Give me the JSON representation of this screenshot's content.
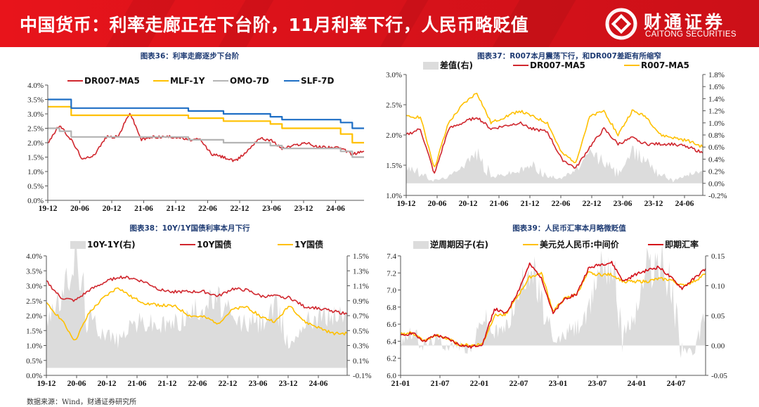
{
  "header": {
    "title": "中国货币：利率走廊正在下台阶，11月利率下行，人民币略贬值",
    "logo_cn": "财通证券",
    "logo_en": "CAITONG SECURITIES",
    "logo_icon": "caitong-logo-icon",
    "background_color": "#e0141b"
  },
  "source": "数据来源：Wind，财通证券研究所",
  "colors": {
    "red": "#d0272e",
    "yellow": "#ffc000",
    "gray": "#b4b4b4",
    "blue": "#1f6fc5",
    "area": "#dcdcdc",
    "title_blue": "#1f3c74"
  },
  "charts": {
    "c36": {
      "title": "图表36：利率走廊逐步下台阶",
      "legend": [
        "DR007-MA5",
        "MLF-1Y",
        "OMO-7D",
        "SLF-7D"
      ],
      "y_ticks": [
        "4.0%",
        "3.5%",
        "3.0%",
        "2.5%",
        "2.0%",
        "1.5%",
        "1.0%",
        "0.5%",
        "0.0%"
      ],
      "x_ticks": [
        "19-12",
        "20-06",
        "20-12",
        "21-06",
        "21-12",
        "22-06",
        "22-12",
        "23-06",
        "23-12",
        "24-06"
      ]
    },
    "c37": {
      "title": "图表37：R007本月震荡下行，和DR007差距有所缩窄",
      "legend": [
        "差值(右)",
        "DR007-MA5",
        "R007-MA5"
      ],
      "y_ticks": [
        "3.0%",
        "2.5%",
        "2.0%",
        "1.5%",
        "1.0%"
      ],
      "y2_ticks": [
        "1.8%",
        "1.6%",
        "1.4%",
        "1.2%",
        "1.0%",
        "0.8%",
        "0.6%",
        "0.4%",
        "0.2%",
        "0.0%",
        "-0.2%"
      ],
      "x_ticks": [
        "19-12",
        "20-06",
        "20-12",
        "21-06",
        "21-12",
        "22-06",
        "22-12",
        "23-06",
        "23-12",
        "24-06"
      ]
    },
    "c38": {
      "title": "图表38：10Y/1Y国债利率本月下行",
      "legend": [
        "10Y-1Y(右)",
        "10Y国债",
        "1Y国债"
      ],
      "y_ticks": [
        "4.0%",
        "3.5%",
        "3.0%",
        "2.5%",
        "2.0%",
        "1.5%",
        "1.0%",
        "0.5%",
        "0.0%"
      ],
      "y2_ticks": [
        "1.5%",
        "1.3%",
        "1.1%",
        "0.9%",
        "0.7%",
        "0.5%",
        "0.3%",
        "0.1%",
        "-0.1%"
      ],
      "x_ticks": [
        "19-12",
        "20-06",
        "20-12",
        "21-06",
        "21-12",
        "22-06",
        "22-12",
        "23-06",
        "23-12",
        "24-06"
      ]
    },
    "c39": {
      "title": "图表39：人民币汇率本月略微贬值",
      "legend": [
        "逆周期因子(右)",
        "美元兑人民币:中间价",
        "即期汇率"
      ],
      "y_ticks": [
        "7.4",
        "7.2",
        "7.0",
        "6.8",
        "6.6",
        "6.4",
        "6.2",
        "6.0"
      ],
      "y2_ticks": [
        "0.15",
        "0.10",
        "0.05",
        "0.00",
        "-0.05"
      ],
      "x_ticks": [
        "21-01",
        "21-07",
        "22-01",
        "22-07",
        "23-01",
        "23-07",
        "24-01",
        "24-07"
      ]
    }
  },
  "chart_data": [
    {
      "type": "line",
      "title": "图表36：利率走廊逐步下台阶",
      "xlabel": "",
      "ylabel": "",
      "ylim": [
        0,
        4.0
      ],
      "y_unit": "%",
      "legend_position": "top",
      "grid": false,
      "x": [
        "19-12",
        "20-02",
        "20-04",
        "20-06",
        "20-08",
        "20-10",
        "20-12",
        "21-01",
        "21-03",
        "21-06",
        "21-09",
        "21-12",
        "22-01",
        "22-03",
        "22-06",
        "22-08",
        "22-10",
        "22-12",
        "23-03",
        "23-06",
        "23-08",
        "23-10",
        "23-12",
        "24-03",
        "24-06",
        "24-08",
        "24-10",
        "24-11"
      ],
      "series": [
        {
          "name": "DR007-MA5",
          "values": [
            2.0,
            2.6,
            2.1,
            1.4,
            1.6,
            2.2,
            2.2,
            3.05,
            2.1,
            2.2,
            2.2,
            2.2,
            2.1,
            2.1,
            1.6,
            1.5,
            1.35,
            1.7,
            2.15,
            2.1,
            1.8,
            1.9,
            2.0,
            1.85,
            1.85,
            1.8,
            1.6,
            1.7
          ]
        },
        {
          "name": "MLF-1Y",
          "values": [
            3.25,
            3.25,
            2.95,
            2.95,
            2.95,
            2.95,
            2.95,
            2.95,
            2.95,
            2.95,
            2.95,
            2.95,
            2.85,
            2.85,
            2.85,
            2.75,
            2.75,
            2.75,
            2.75,
            2.65,
            2.5,
            2.5,
            2.5,
            2.5,
            2.5,
            2.3,
            2.0,
            2.0
          ]
        },
        {
          "name": "OMO-7D",
          "values": [
            2.5,
            2.4,
            2.2,
            2.2,
            2.2,
            2.2,
            2.2,
            2.2,
            2.2,
            2.2,
            2.2,
            2.2,
            2.1,
            2.1,
            2.1,
            2.0,
            2.0,
            2.0,
            2.0,
            1.9,
            1.8,
            1.8,
            1.8,
            1.8,
            1.8,
            1.7,
            1.5,
            1.5
          ]
        },
        {
          "name": "SLF-7D",
          "values": [
            3.5,
            3.5,
            3.2,
            3.2,
            3.2,
            3.2,
            3.2,
            3.2,
            3.2,
            3.2,
            3.2,
            3.2,
            3.1,
            3.1,
            3.1,
            3.0,
            3.0,
            3.0,
            3.0,
            2.9,
            2.8,
            2.8,
            2.8,
            2.8,
            2.8,
            2.7,
            2.5,
            2.5
          ]
        }
      ]
    },
    {
      "type": "line",
      "title": "图表37：R007本月震荡下行，和DR007差距有所缩窄",
      "xlabel": "",
      "ylabel": "",
      "ylim": [
        1.0,
        3.0
      ],
      "y2lim": [
        -0.2,
        1.8
      ],
      "y_unit": "%",
      "legend_position": "top",
      "grid": false,
      "x": [
        "19-12",
        "20-02",
        "20-04",
        "20-06",
        "20-09",
        "20-12",
        "21-03",
        "21-06",
        "21-09",
        "21-12",
        "22-03",
        "22-06",
        "22-09",
        "22-12",
        "23-03",
        "23-06",
        "23-09",
        "23-12",
        "24-03",
        "24-06",
        "24-09",
        "24-11"
      ],
      "series": [
        {
          "name": "差值(右)",
          "axis": "right",
          "type": "area",
          "values": [
            0.3,
            0.15,
            0.05,
            0.1,
            0.3,
            0.5,
            0.1,
            0.15,
            0.2,
            0.3,
            0.1,
            0.1,
            0.2,
            0.5,
            0.35,
            0.15,
            0.5,
            0.4,
            0.15,
            0.05,
            0.15,
            0.2
          ]
        },
        {
          "name": "DR007-MA5",
          "axis": "left",
          "values": [
            2.0,
            2.1,
            1.35,
            2.1,
            2.2,
            2.3,
            2.1,
            2.15,
            2.2,
            2.1,
            2.05,
            1.6,
            1.45,
            1.8,
            2.1,
            1.85,
            1.95,
            1.85,
            1.85,
            1.85,
            1.8,
            1.7
          ]
        },
        {
          "name": "R007-MA5",
          "axis": "left",
          "values": [
            2.3,
            2.3,
            1.45,
            2.2,
            2.5,
            2.7,
            2.2,
            2.3,
            2.4,
            2.3,
            2.2,
            1.7,
            1.55,
            2.3,
            2.4,
            2.0,
            2.4,
            2.3,
            2.0,
            1.95,
            1.9,
            1.8
          ]
        }
      ]
    },
    {
      "type": "line",
      "title": "图表38：10Y/1Y国债利率本月下行",
      "xlabel": "",
      "ylabel": "",
      "ylim": [
        0,
        4.0
      ],
      "y2lim": [
        -0.1,
        1.5
      ],
      "y_unit": "%",
      "legend_position": "top",
      "grid": false,
      "x": [
        "19-12",
        "20-03",
        "20-05",
        "20-06",
        "20-09",
        "20-12",
        "21-03",
        "21-06",
        "21-09",
        "21-12",
        "22-03",
        "22-06",
        "22-09",
        "22-12",
        "23-03",
        "23-06",
        "23-09",
        "23-12",
        "24-03",
        "24-06",
        "24-09",
        "24-11"
      ],
      "series": [
        {
          "name": "10Y-1Y(右)",
          "axis": "right",
          "type": "area",
          "values": [
            0.7,
            0.9,
            1.45,
            0.65,
            0.5,
            0.35,
            0.6,
            0.6,
            0.55,
            0.6,
            0.7,
            0.85,
            0.9,
            0.6,
            0.6,
            0.6,
            0.8,
            0.3,
            0.6,
            0.7,
            0.7,
            0.7
          ]
        },
        {
          "name": "10Y国债",
          "axis": "left",
          "values": [
            3.15,
            2.6,
            2.5,
            2.85,
            3.1,
            3.3,
            3.25,
            3.1,
            2.85,
            2.8,
            2.8,
            2.8,
            2.65,
            2.9,
            2.85,
            2.65,
            2.65,
            2.6,
            2.3,
            2.25,
            2.15,
            2.05
          ]
        },
        {
          "name": "1Y国债",
          "axis": "left",
          "values": [
            2.4,
            1.9,
            1.15,
            2.1,
            2.6,
            2.95,
            2.6,
            2.4,
            2.35,
            2.3,
            2.0,
            1.95,
            1.75,
            2.2,
            2.3,
            1.95,
            1.8,
            2.35,
            1.8,
            1.6,
            1.4,
            1.4
          ]
        }
      ]
    },
    {
      "type": "line",
      "title": "图表39：人民币汇率本月略微贬值",
      "xlabel": "",
      "ylabel": "",
      "ylim": [
        6.0,
        7.4
      ],
      "y2lim": [
        -0.05,
        0.15
      ],
      "legend_position": "top",
      "grid": false,
      "x": [
        "21-01",
        "21-03",
        "21-05",
        "21-07",
        "21-10",
        "22-01",
        "22-03",
        "22-04",
        "22-05",
        "22-07",
        "22-09",
        "22-10",
        "22-11",
        "23-01",
        "23-03",
        "23-05",
        "23-07",
        "23-09",
        "23-11",
        "23-12",
        "24-01",
        "24-04",
        "24-07",
        "24-08",
        "24-09",
        "24-10",
        "24-11"
      ],
      "series": [
        {
          "name": "逆周期因子(右)",
          "axis": "right",
          "type": "area",
          "values": [
            0.01,
            0.02,
            0.0,
            0.01,
            0.0,
            0.0,
            -0.01,
            0.05,
            0.02,
            0.03,
            0.08,
            0.14,
            0.07,
            0.0,
            0.02,
            0.03,
            0.05,
            0.14,
            0.14,
            0.02,
            0.05,
            0.13,
            0.14,
            0.1,
            0.0,
            -0.02,
            0.06
          ]
        },
        {
          "name": "美元兑人民币:中间价",
          "axis": "left",
          "values": [
            6.48,
            6.5,
            6.4,
            6.47,
            6.43,
            6.36,
            6.35,
            6.37,
            6.7,
            6.72,
            6.93,
            7.15,
            7.2,
            6.75,
            6.9,
            6.95,
            7.2,
            7.18,
            7.18,
            7.1,
            7.1,
            7.1,
            7.13,
            7.12,
            7.05,
            7.1,
            7.19
          ]
        },
        {
          "name": "即期汇率",
          "axis": "left",
          "values": [
            6.46,
            6.5,
            6.4,
            6.47,
            6.43,
            6.36,
            6.33,
            6.37,
            6.78,
            6.72,
            6.98,
            7.3,
            7.15,
            6.72,
            6.9,
            6.95,
            7.25,
            7.3,
            7.32,
            7.1,
            7.18,
            7.23,
            7.27,
            7.15,
            7.02,
            7.13,
            7.25
          ]
        }
      ]
    }
  ]
}
